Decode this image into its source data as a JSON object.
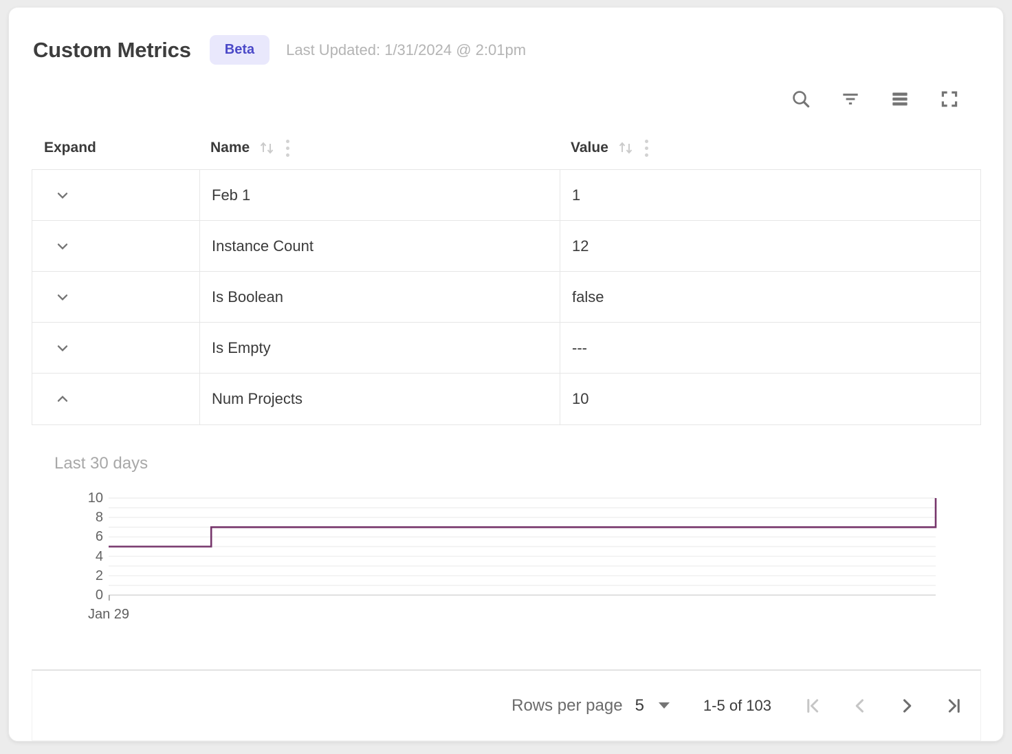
{
  "header": {
    "title": "Custom Metrics",
    "beta_badge": "Beta",
    "last_updated": "Last Updated: 1/31/2024 @ 2:01pm"
  },
  "toolbar": {
    "icons": [
      "search",
      "filter",
      "density",
      "fullscreen"
    ]
  },
  "table": {
    "columns": [
      {
        "label": "Expand",
        "sortable": false
      },
      {
        "label": "Name",
        "sortable": true
      },
      {
        "label": "Value",
        "sortable": true
      }
    ],
    "rows": [
      {
        "name": "Feb 1",
        "value": "1",
        "expanded": false
      },
      {
        "name": "Instance Count",
        "value": "12",
        "expanded": false
      },
      {
        "name": "Is Boolean",
        "value": "false",
        "expanded": false
      },
      {
        "name": "Is Empty",
        "value": "---",
        "expanded": false
      },
      {
        "name": "Num Projects",
        "value": "10",
        "expanded": true
      }
    ]
  },
  "chart_data": {
    "type": "line",
    "line_style": "step",
    "title": "Last 30 days",
    "series": [
      {
        "name": "Num Projects",
        "color": "#76356b",
        "step_points": [
          [
            0,
            5
          ],
          [
            0.124,
            5
          ],
          [
            0.124,
            7
          ],
          [
            1,
            7
          ],
          [
            1,
            10
          ]
        ]
      }
    ],
    "ylim": [
      0,
      10
    ],
    "y_ticks": [
      0,
      2,
      4,
      6,
      8,
      10
    ],
    "y_gridline_step": 1,
    "x_tick_labels": [
      "Jan 29"
    ],
    "grid": true,
    "legend": "none"
  },
  "pagination": {
    "rows_per_page_label": "Rows per page",
    "rows_per_page_value": "5",
    "range_label": "1-5 of 103",
    "nav_buttons": [
      {
        "name": "first-page",
        "disabled": true
      },
      {
        "name": "previous-page",
        "disabled": true
      },
      {
        "name": "next-page",
        "disabled": false
      },
      {
        "name": "last-page",
        "disabled": false
      }
    ]
  },
  "colors": {
    "line": "#76356b",
    "beta_bg": "#e9e8fc",
    "beta_text": "#4b49c8",
    "border": "#e6e6e6"
  }
}
